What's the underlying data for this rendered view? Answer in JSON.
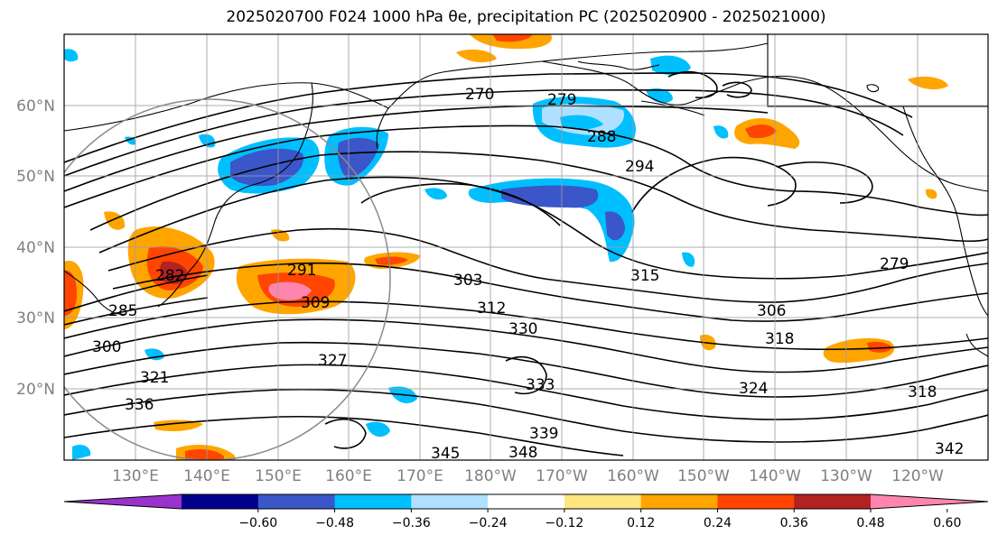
{
  "title": "2025020700 F024 1000 hPa θe, precipitation PC (2025020900 - 2025021000)",
  "lat_labels": [
    "60°N",
    "50°N",
    "40°N",
    "30°N",
    "20°N"
  ],
  "lon_labels": [
    "130°E",
    "140°E",
    "150°E",
    "160°E",
    "170°E",
    "180°W",
    "170°W",
    "160°W",
    "150°W",
    "140°W",
    "130°W",
    "120°W"
  ],
  "colorbar": {
    "ticks": [
      "−0.60",
      "−0.48",
      "−0.36",
      "−0.24",
      "−0.12",
      "0.12",
      "0.24",
      "0.36",
      "0.48",
      "0.60"
    ],
    "colors": [
      "#9932cc",
      "#00008b",
      "#3a56c8",
      "#00bfff",
      "#b0e0ff",
      "#ffffff",
      "#ffe680",
      "#ffa500",
      "#ff4500",
      "#b22222",
      "#ff85b0"
    ]
  },
  "contour_labels": [
    "270",
    "279",
    "288",
    "294",
    "303",
    "315",
    "312",
    "306",
    "318",
    "330",
    "324",
    "333",
    "291",
    "309",
    "300",
    "321",
    "327",
    "336",
    "339",
    "345",
    "348",
    "342",
    "318",
    "282",
    "285",
    "279"
  ],
  "colors": {
    "contour": "#000000",
    "grid": "#9e9e9e",
    "circle": "#8a8a8a"
  }
}
